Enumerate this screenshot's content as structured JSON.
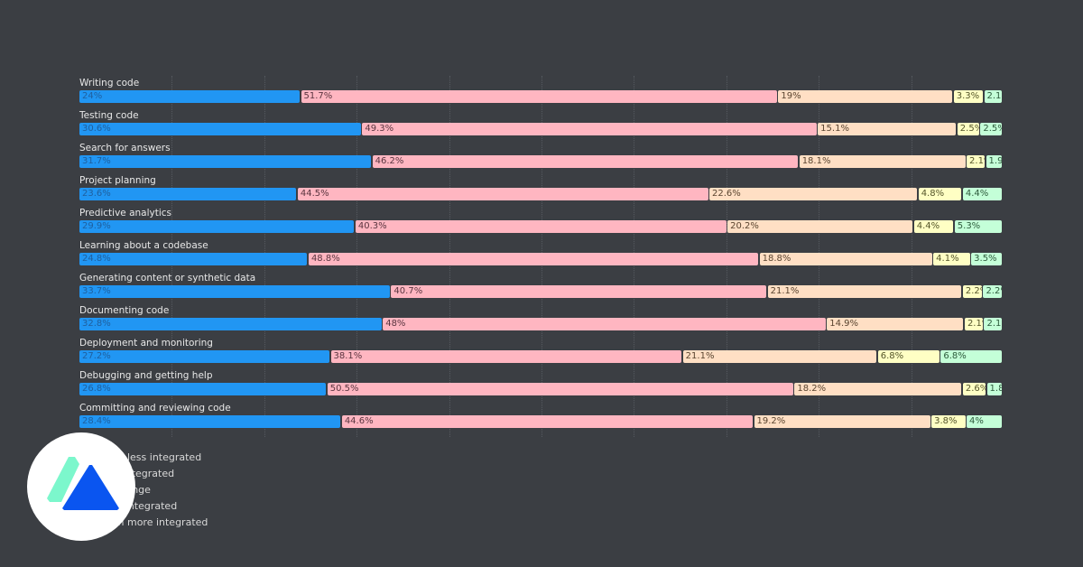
{
  "chart_data": {
    "type": "bar",
    "orientation": "horizontal-stacked-100",
    "categories": [
      "Writing code",
      "Testing code",
      "Search for answers",
      "Project planning",
      "Predictive analytics",
      "Learning about a codebase",
      "Generating content or synthetic data",
      "Documenting code",
      "Deployment and monitoring",
      "Debugging and getting help",
      "Committing and reviewing code"
    ],
    "series": [
      {
        "name": "Much less integrated",
        "color": "#2196f3",
        "label_color": "#1f5f9e",
        "values": [
          24,
          30.6,
          31.7,
          23.6,
          29.9,
          24.8,
          33.7,
          32.8,
          27.2,
          26.8,
          28.4
        ]
      },
      {
        "name": "Less integrated",
        "color": "#ffb6c1",
        "label_color": "#5a3540",
        "values": [
          51.7,
          49.3,
          46.2,
          44.5,
          40.3,
          48.8,
          40.7,
          48,
          38.1,
          50.5,
          44.6
        ]
      },
      {
        "name": "No change",
        "color": "#ffdfc4",
        "label_color": "#5a4530",
        "values": [
          19,
          15.1,
          18.1,
          22.6,
          20.2,
          18.8,
          21.1,
          14.9,
          21.1,
          18.2,
          19.2
        ]
      },
      {
        "name": "More integrated",
        "color": "#ffffc4",
        "label_color": "#55552a",
        "values": [
          3.3,
          2.5,
          2.1,
          4.8,
          4.4,
          4.1,
          2.2,
          2.1,
          6.8,
          2.6,
          3.8
        ]
      },
      {
        "name": "Much more integrated",
        "color": "#c4ffd8",
        "label_color": "#2d5a3c",
        "values": [
          2.1,
          2.5,
          1.9,
          4.4,
          5.3,
          3.5,
          2.2,
          2.1,
          6.8,
          1.8,
          4
        ]
      }
    ],
    "xlim": [
      0,
      100
    ],
    "grid": true,
    "legend_position": "bottom-left",
    "value_suffix": "%"
  },
  "logo": {
    "colors": [
      "#7cf7cc",
      "#0a55f0"
    ]
  }
}
